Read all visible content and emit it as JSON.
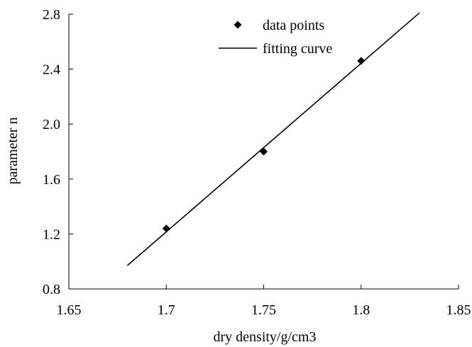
{
  "chart_data": {
    "type": "scatter",
    "title": "",
    "xlabel": "dry density/g/cm3",
    "ylabel": "parameter n",
    "xlim": [
      1.65,
      1.85
    ],
    "ylim": [
      0.8,
      2.8
    ],
    "x_ticks": [
      "1.65",
      "1.7",
      "1.75",
      "1.8",
      "1.85"
    ],
    "y_ticks": [
      "0.8",
      "1.2",
      "1.6",
      "2.0",
      "2.4",
      "2.8"
    ],
    "grid": false,
    "legend_position": "top-center",
    "series": [
      {
        "name": "data points",
        "kind": "scatter",
        "marker": "diamond",
        "color": "#000000",
        "points": [
          {
            "x": 1.7,
            "y": 1.24
          },
          {
            "x": 1.75,
            "y": 1.8
          },
          {
            "x": 1.8,
            "y": 2.46
          }
        ]
      },
      {
        "name": "fitting curve",
        "kind": "line",
        "color": "#000000",
        "points": [
          {
            "x": 1.68,
            "y": 0.97
          },
          {
            "x": 1.83,
            "y": 2.81
          }
        ]
      }
    ]
  }
}
